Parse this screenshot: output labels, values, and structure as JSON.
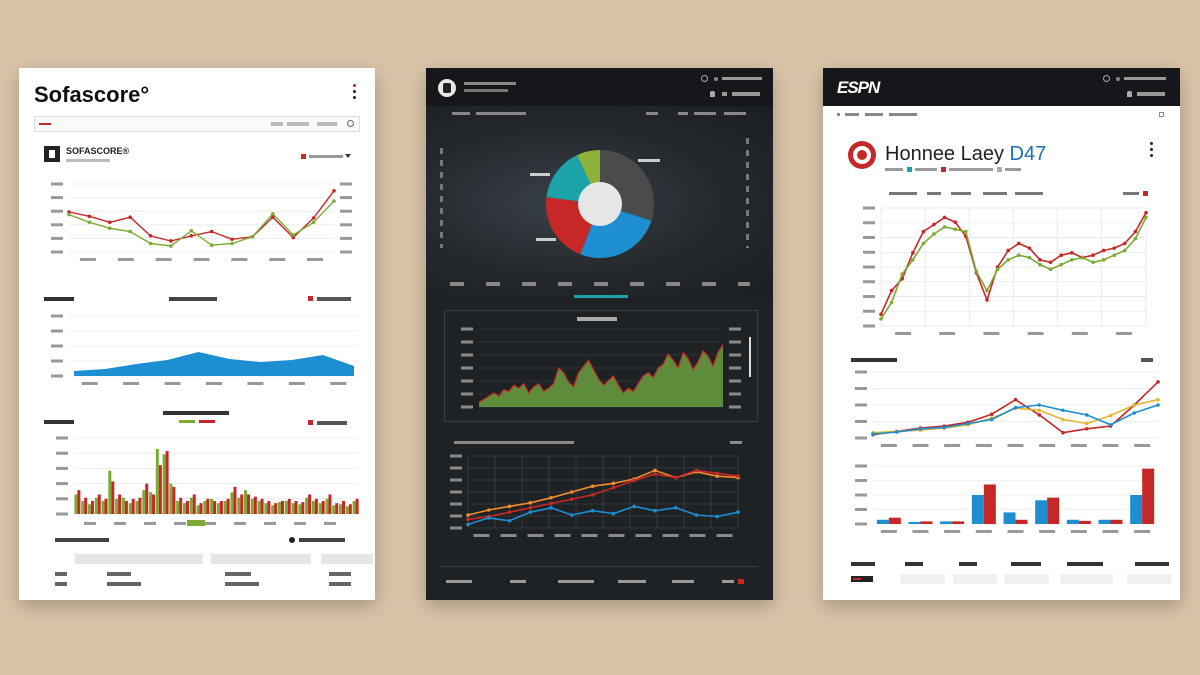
{
  "colors": {
    "red": "#c62828",
    "green": "#7cab34",
    "blue": "#1d8fd1",
    "orange": "#f28c28",
    "yellow": "#e5b62e",
    "dark": "#1f2225",
    "background": "#d9c4a8"
  },
  "left": {
    "title": "Sofascore°",
    "menu_icon": "vertical-dots-icon",
    "brand": "SOFASCORE®",
    "search_icon": "search-icon"
  },
  "middle": {
    "logo_icon": "team-crest-icon",
    "search_icon": "search-icon"
  },
  "right": {
    "logo": "ESPN",
    "title": "Honnee Laey",
    "title_accent": "D47",
    "crest_icon": "club-crest-icon",
    "menu_icon": "vertical-dots-icon"
  },
  "chart_data": [
    {
      "id": "left-line",
      "type": "line",
      "x": [
        0,
        1,
        2,
        3,
        4,
        5,
        6,
        7,
        8,
        9,
        10,
        11,
        12,
        13
      ],
      "series": [
        {
          "values": [
            47,
            42,
            35,
            41,
            19,
            13,
            19,
            24,
            15,
            18,
            41,
            17,
            40,
            72
          ],
          "color": "#c62828"
        },
        {
          "values": [
            44,
            35,
            28,
            24,
            10,
            7,
            25,
            8,
            10,
            18,
            45,
            20,
            35,
            60
          ],
          "color": "#7cab34"
        }
      ],
      "ylim": [
        0,
        80
      ]
    },
    {
      "id": "left-area",
      "type": "area",
      "x": [
        0,
        1,
        2,
        3,
        4,
        5,
        6,
        7,
        8,
        9
      ],
      "values": [
        5,
        7,
        12,
        16,
        24,
        17,
        14,
        16,
        21,
        10
      ],
      "ylim": [
        0,
        60
      ]
    },
    {
      "id": "left-bars",
      "type": "bar",
      "categories_count": 42,
      "series": [
        {
          "values": [
            18,
            12,
            9,
            15,
            12,
            40,
            14,
            15,
            10,
            12,
            22,
            20,
            60,
            55,
            28,
            12,
            10,
            15,
            8,
            12,
            14,
            10,
            12,
            20,
            15,
            22,
            14,
            12,
            10,
            8,
            11,
            12,
            10,
            9,
            15,
            12,
            10,
            14,
            8,
            9,
            7,
            12
          ],
          "color": "#7cab34"
        },
        {
          "values": [
            22,
            15,
            12,
            18,
            14,
            30,
            18,
            12,
            14,
            15,
            28,
            18,
            45,
            58,
            25,
            15,
            12,
            18,
            10,
            14,
            12,
            12,
            14,
            25,
            18,
            18,
            16,
            14,
            12,
            10,
            12,
            14,
            12,
            11,
            18,
            14,
            12,
            18,
            10,
            12,
            9,
            14
          ],
          "color": "#c62828"
        }
      ],
      "ylim": [
        0,
        70
      ]
    },
    {
      "id": "middle-pie",
      "type": "pie",
      "values": [
        30,
        26,
        21,
        16,
        7
      ],
      "colors": [
        "#4b4b4b",
        "#1d8fd1",
        "#c62828",
        "#1ba3a9",
        "#8db33a"
      ]
    },
    {
      "id": "middle-area",
      "type": "area",
      "x": [
        0,
        1,
        2,
        3,
        4,
        5,
        6,
        7,
        8,
        9,
        10,
        11,
        12,
        13,
        14,
        15,
        16,
        17,
        18,
        19,
        20,
        21,
        22,
        23,
        24,
        25,
        26,
        27,
        28,
        29,
        30,
        31,
        32,
        33,
        34,
        35,
        36,
        37,
        38,
        39,
        40,
        41,
        42,
        43,
        44,
        45,
        46,
        47,
        48,
        49
      ],
      "values": [
        6,
        10,
        14,
        18,
        14,
        22,
        20,
        28,
        24,
        30,
        18,
        26,
        30,
        20,
        24,
        30,
        50,
        44,
        32,
        26,
        44,
        52,
        60,
        48,
        36,
        28,
        34,
        40,
        28,
        18,
        24,
        20,
        30,
        40,
        44,
        38,
        50,
        55,
        68,
        60,
        50,
        70,
        62,
        48,
        58,
        72,
        65,
        52,
        70,
        80
      ],
      "ylim": [
        0,
        100
      ]
    },
    {
      "id": "middle-lines",
      "type": "line",
      "x": [
        0,
        1,
        2,
        3,
        4,
        5,
        6,
        7,
        8,
        9,
        10,
        11,
        12,
        13
      ],
      "series": [
        {
          "values": [
            18,
            25,
            30,
            35,
            42,
            50,
            58,
            62,
            68,
            80,
            70,
            78,
            72,
            70
          ],
          "color": "#f28c28"
        },
        {
          "values": [
            12,
            16,
            22,
            28,
            34,
            40,
            46,
            56,
            66,
            75,
            70,
            80,
            76,
            72
          ],
          "color": "#c62828"
        },
        {
          "values": [
            5,
            14,
            10,
            22,
            28,
            18,
            24,
            20,
            30,
            24,
            28,
            18,
            16,
            22
          ],
          "color": "#1d8fd1"
        }
      ],
      "ylim": [
        0,
        100
      ]
    },
    {
      "id": "right-line",
      "type": "line",
      "x": [
        0,
        1,
        2,
        3,
        4,
        5,
        6,
        7,
        8,
        9,
        10,
        11,
        12,
        13,
        14,
        15,
        16,
        17,
        18,
        19,
        20,
        21,
        22,
        23,
        24,
        25
      ],
      "series": [
        {
          "values": [
            10,
            30,
            40,
            62,
            80,
            86,
            92,
            88,
            76,
            45,
            22,
            50,
            64,
            70,
            66,
            56,
            54,
            60,
            62,
            58,
            60,
            64,
            66,
            70,
            80,
            96
          ],
          "color": "#c62828"
        },
        {
          "values": [
            6,
            20,
            44,
            56,
            70,
            78,
            84,
            82,
            80,
            46,
            30,
            48,
            56,
            60,
            58,
            52,
            48,
            52,
            56,
            58,
            54,
            56,
            60,
            64,
            74,
            92
          ],
          "color": "#7cab34"
        }
      ],
      "ylim": [
        0,
        100
      ]
    },
    {
      "id": "right-lines2",
      "type": "line",
      "x": [
        0,
        1,
        2,
        3,
        4,
        5,
        6,
        7,
        8,
        9,
        10,
        11,
        12
      ],
      "series": [
        {
          "values": [
            5,
            10,
            15,
            18,
            24,
            36,
            58,
            35,
            8,
            14,
            18,
            50,
            85
          ],
          "color": "#c62828"
        },
        {
          "values": [
            8,
            10,
            12,
            15,
            20,
            30,
            45,
            42,
            28,
            22,
            34,
            50,
            58
          ],
          "color": "#e5b62e"
        },
        {
          "values": [
            6,
            9,
            14,
            16,
            22,
            28,
            46,
            50,
            42,
            35,
            20,
            38,
            50
          ],
          "color": "#1d8fd1"
        }
      ],
      "ylim": [
        0,
        100
      ]
    },
    {
      "id": "right-bars",
      "type": "bar",
      "categories_count": 9,
      "series": [
        {
          "values": [
            8,
            4,
            5,
            55,
            22,
            45,
            8,
            8,
            55
          ],
          "color": "#1d8fd1"
        },
        {
          "values": [
            12,
            5,
            5,
            75,
            8,
            50,
            6,
            8,
            105
          ],
          "color": "#c62828"
        }
      ],
      "ylim": [
        0,
        110
      ]
    }
  ]
}
